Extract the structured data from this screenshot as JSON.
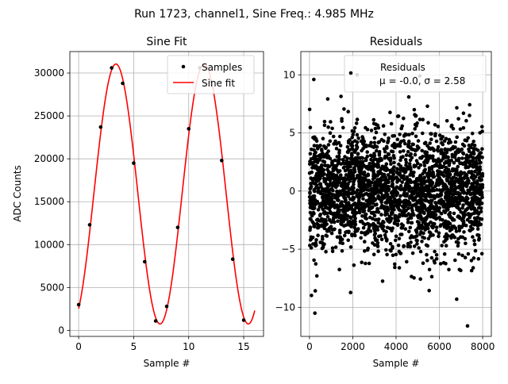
{
  "suptitle": "Run 1723, channel1, Sine Freq.: 4.985 MHz",
  "chart_data": [
    {
      "type": "scatter",
      "title": "Sine Fit",
      "xlabel": "Sample #",
      "ylabel": "ADC Counts",
      "xlim": [
        -0.8,
        16.8
      ],
      "ylim": [
        -700,
        32500
      ],
      "xticks": [
        0,
        5,
        10,
        15
      ],
      "yticks": [
        0,
        5000,
        10000,
        15000,
        20000,
        25000,
        30000
      ],
      "grid": true,
      "legend": {
        "placement": "top-right",
        "entries": [
          "Samples",
          "Sine fit"
        ]
      },
      "series": [
        {
          "name": "Samples",
          "marker": "point",
          "color": "#000000",
          "x": [
            0,
            1,
            2,
            3,
            4,
            5,
            6,
            7,
            8,
            9,
            10,
            11,
            12,
            13,
            14,
            15
          ],
          "y": [
            3000,
            12300,
            23700,
            30600,
            28800,
            19500,
            8000,
            1100,
            2800,
            12000,
            23500,
            30600,
            29000,
            19800,
            8300,
            1200
          ]
        },
        {
          "name": "Sine fit",
          "marker": "line",
          "color": "#ff0000",
          "fit": {
            "offset": 15900,
            "amplitude": 15150,
            "period": 8.02,
            "phase_sample": 1.38,
            "x_range": [
              0,
              16
            ]
          }
        }
      ]
    },
    {
      "type": "scatter",
      "title": "Residuals",
      "xlabel": "Sample #",
      "ylabel": "",
      "xlim": [
        -400,
        8400
      ],
      "ylim": [
        -12.5,
        12
      ],
      "xticks": [
        0,
        2000,
        4000,
        6000,
        8000
      ],
      "yticks": [
        -10,
        -5,
        0,
        5,
        10
      ],
      "grid": true,
      "legend": {
        "placement": "top-right",
        "entries": [
          "Residuals",
          "μ = -0.0, σ = 2.58"
        ]
      },
      "series": [
        {
          "name": "Residuals",
          "marker": "point",
          "color": "#000000",
          "stats": {
            "mean": -0.0,
            "sigma": 2.58
          },
          "n_points": 8000,
          "x_range": [
            0,
            8000
          ],
          "outliers": [
            [
              250,
              -10.5
            ],
            [
              7300,
              -11.6
            ],
            [
              6800,
              -9.3
            ],
            [
              200,
              9.6
            ],
            [
              2200,
              10.0
            ],
            [
              5100,
              9.9
            ],
            [
              6400,
              9.5
            ]
          ]
        }
      ]
    }
  ]
}
